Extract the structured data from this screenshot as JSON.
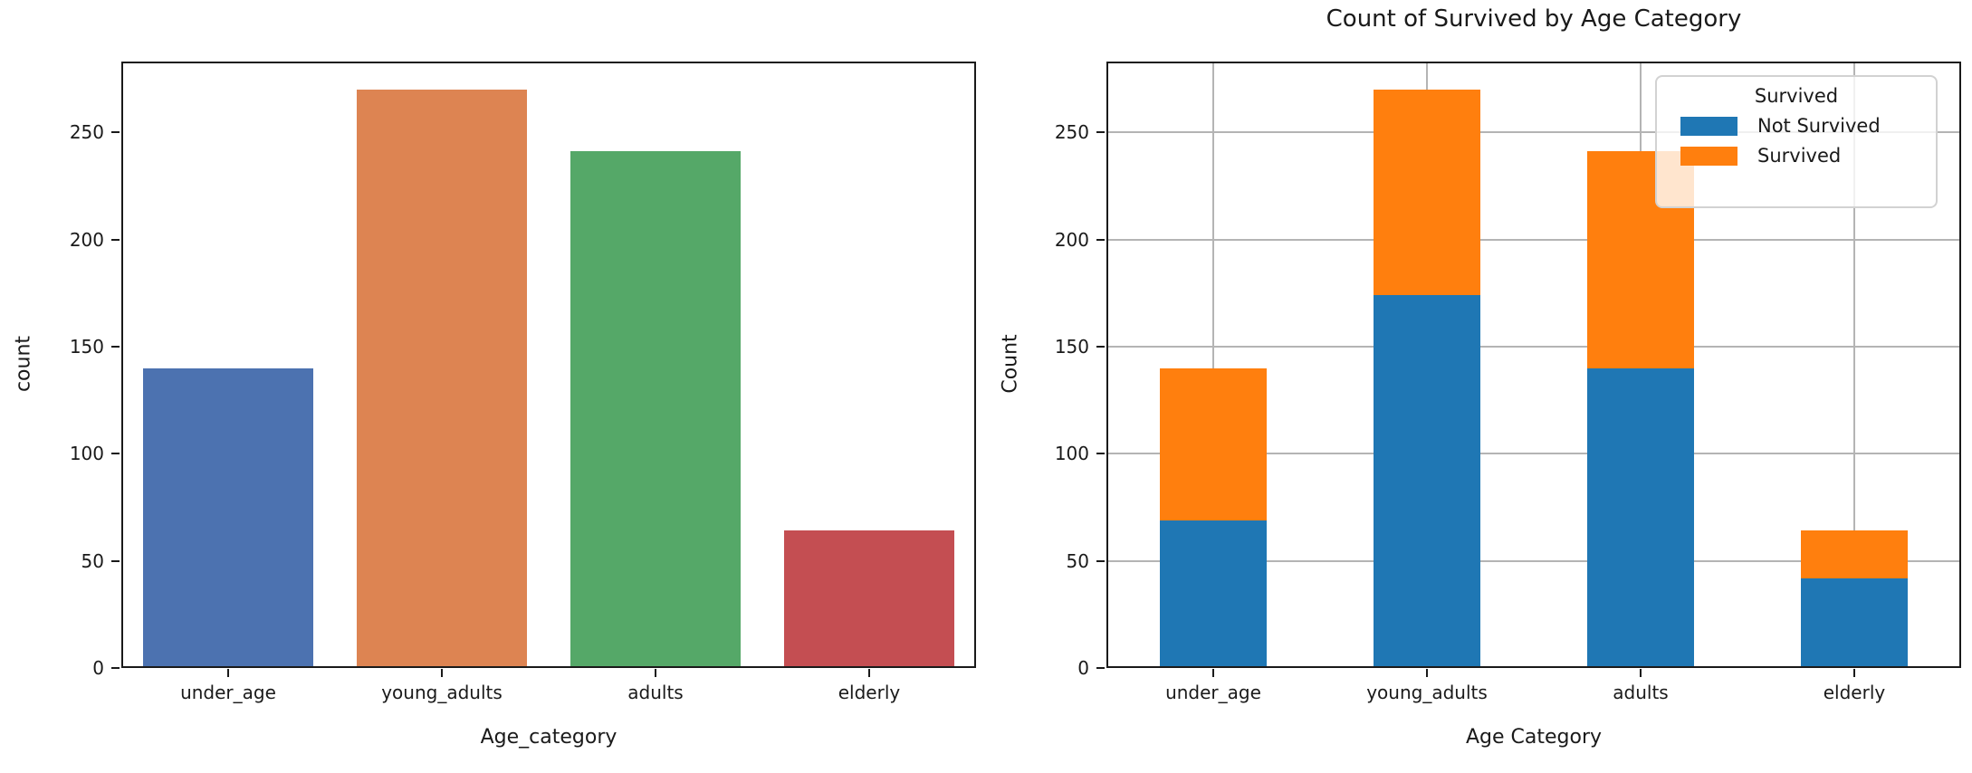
{
  "figure": {
    "background": "#ffffff",
    "text_color": "#1a1a1a",
    "grid_color": "#b4b4b4"
  },
  "chart_data": [
    {
      "type": "bar",
      "title": "",
      "xlabel": "Age_category",
      "ylabel": "count",
      "categories": [
        "under_age",
        "young_adults",
        "adults",
        "elderly"
      ],
      "values": [
        140,
        270,
        241,
        64
      ],
      "bar_colors": [
        "#4C72B0",
        "#DD8452",
        "#55A868",
        "#C44E52"
      ],
      "yticks": [
        0,
        50,
        100,
        150,
        200,
        250
      ],
      "ylim": [
        0,
        283
      ],
      "grid": false,
      "legend": null
    },
    {
      "type": "bar",
      "stacked": true,
      "title": "Count of Survived by Age Category",
      "xlabel": "Age Category",
      "ylabel": "Count",
      "categories": [
        "under_age",
        "young_adults",
        "adults",
        "elderly"
      ],
      "series": [
        {
          "name": "Not Survived",
          "color": "#1f77b4",
          "values": [
            69,
            174,
            140,
            42
          ]
        },
        {
          "name": "Survived",
          "color": "#ff7f0e",
          "values": [
            71,
            96,
            101,
            22
          ]
        }
      ],
      "yticks": [
        0,
        50,
        100,
        150,
        200,
        250
      ],
      "ylim": [
        0,
        283
      ],
      "grid": true,
      "legend": {
        "title": "Survived",
        "position": "upper right"
      }
    }
  ]
}
